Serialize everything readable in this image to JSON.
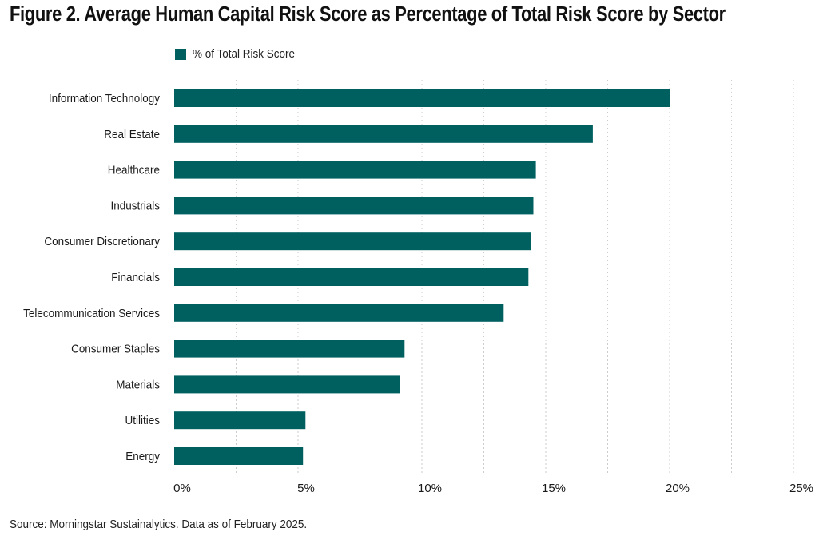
{
  "title": "Figure 2. Average Human Capital Risk Score as Percentage of Total Risk Score by Sector",
  "source": "Source: Morningstar Sustainalytics. Data as of February 2025.",
  "colors": {
    "bar": "#006060",
    "grid": "#cccccc",
    "text": "#1a1a1a"
  },
  "chart_data": {
    "type": "bar",
    "orientation": "horizontal",
    "title": "Figure 2. Average Human Capital Risk Score as Percentage of Total Risk Score by Sector",
    "xlabel": "",
    "ylabel": "",
    "legend": {
      "position": "top-left",
      "entries": [
        "% of Total Risk Score"
      ]
    },
    "grid": "vertical dashed",
    "xlim": [
      0,
      25
    ],
    "x_ticks": [
      {
        "value": 0,
        "label": "0%"
      },
      {
        "value": 5,
        "label": "5%"
      },
      {
        "value": 10,
        "label": "10%"
      },
      {
        "value": 15,
        "label": "15%"
      },
      {
        "value": 20,
        "label": "20%"
      },
      {
        "value": 25,
        "label": "25%"
      }
    ],
    "categories": [
      "Information Technology",
      "Real Estate",
      "Healthcare",
      "Industrials",
      "Consumer Discretionary",
      "Financials",
      "Telecommunication Services",
      "Consumer Staples",
      "Materials",
      "Utilities",
      "Energy"
    ],
    "series": [
      {
        "name": "% of Total Risk Score",
        "values": [
          20.0,
          16.9,
          14.6,
          14.5,
          14.4,
          14.3,
          13.3,
          9.3,
          9.1,
          5.3,
          5.2
        ]
      }
    ]
  }
}
